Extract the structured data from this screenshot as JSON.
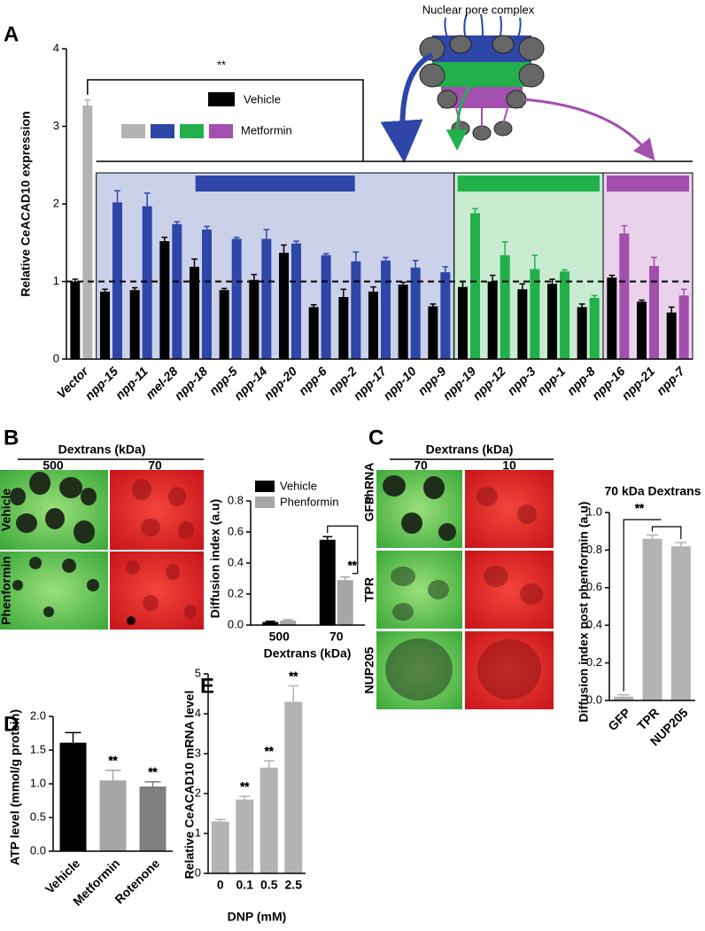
{
  "chart_data": [
    {
      "type": "bar",
      "panel_label": "A",
      "ylabel": "Relative CeACAD10 expression",
      "inset_label": "Nuclear pore complex",
      "categories": [
        "Vector",
        "npp-15",
        "npp-11",
        "mel-28",
        "npp-18",
        "npp-5",
        "npp-14",
        "npp-20",
        "npp-6",
        "npp-2",
        "npp-17",
        "npp-10",
        "npp-9",
        "npp-19",
        "npp-12",
        "npp-3",
        "npp-1",
        "npp-8",
        "npp-16",
        "npp-21",
        "npp-7"
      ],
      "series": [
        {
          "name": "Vehicle",
          "color": "#000000",
          "values": [
            1.0,
            0.87,
            0.89,
            1.52,
            1.19,
            0.89,
            1.02,
            1.37,
            0.67,
            0.8,
            0.87,
            0.96,
            0.68,
            0.93,
            1.0,
            0.9,
            0.97,
            0.67,
            1.05,
            0.74,
            0.6
          ],
          "errors": [
            0.03,
            0.03,
            0.03,
            0.05,
            0.1,
            0.02,
            0.07,
            0.1,
            0.03,
            0.1,
            0.06,
            0.03,
            0.03,
            0.07,
            0.08,
            0.07,
            0.06,
            0.04,
            0.03,
            0.02,
            0.07
          ]
        },
        {
          "name": "Metformin",
          "colors": [
            "#b3b3b3",
            "#2e46a8",
            "#2e46a8",
            "#2e46a8",
            "#2e46a8",
            "#2e46a8",
            "#2e46a8",
            "#2e46a8",
            "#2e46a8",
            "#2e46a8",
            "#2e46a8",
            "#2e46a8",
            "#2e46a8",
            "#22b04b",
            "#22b04b",
            "#22b04b",
            "#22b04b",
            "#22b04b",
            "#a24fae",
            "#a24fae",
            "#a24fae"
          ],
          "values": [
            3.27,
            2.02,
            1.97,
            1.74,
            1.67,
            1.55,
            1.55,
            1.49,
            1.34,
            1.26,
            1.27,
            1.18,
            1.12,
            1.88,
            1.34,
            1.16,
            1.13,
            0.79,
            1.62,
            1.2,
            0.82
          ],
          "errors": [
            0.07,
            0.15,
            0.17,
            0.03,
            0.04,
            0.02,
            0.12,
            0.03,
            0.02,
            0.12,
            0.04,
            0.09,
            0.07,
            0.06,
            0.17,
            0.18,
            0.02,
            0.03,
            0.1,
            0.11,
            0.08
          ]
        }
      ],
      "ylim": [
        0,
        4
      ],
      "yticks": [
        0,
        1,
        2,
        3,
        4
      ],
      "hline": 1,
      "annotations": [
        "**"
      ]
    },
    {
      "type": "bar",
      "panel_label": "B",
      "ylabel": "Diffusion index (a.u)",
      "xlabel": "Dextrans (kDa)",
      "categories": [
        "500",
        "70"
      ],
      "series": [
        {
          "name": "Vehicle",
          "color": "#000000",
          "values": [
            0.02,
            0.55
          ],
          "errors": [
            0.005,
            0.02
          ]
        },
        {
          "name": "Phenformin",
          "color": "#a6a6a6",
          "values": [
            0.03,
            0.29
          ],
          "errors": [
            0.005,
            0.02
          ]
        }
      ],
      "ylim": [
        0,
        0.8
      ],
      "yticks": [
        {
          "value": 0,
          "label": "0.0"
        },
        0.2,
        0.4,
        0.6,
        0.8
      ],
      "annotations": [
        "**"
      ]
    },
    {
      "type": "bar",
      "panel_label": "C",
      "title": "70 kDa Dextrans",
      "ylabel": "Diffusion index post phenformin (a.u)",
      "categories": [
        "GFP",
        "TPR",
        "NUP205"
      ],
      "values": [
        0.02,
        0.86,
        0.82
      ],
      "errors": [
        0.01,
        0.02,
        0.02
      ],
      "colors": [
        "#b3b3b3",
        "#b3b3b3",
        "#b3b3b3"
      ],
      "ylim": [
        0,
        1
      ],
      "yticks": [
        {
          "value": 0,
          "label": "0.0"
        },
        0.2,
        0.4,
        0.6,
        0.8,
        {
          "value": 1,
          "label": "1.0"
        }
      ],
      "annotations": [
        "**"
      ]
    },
    {
      "type": "bar",
      "panel_label": "D",
      "ylabel": "ATP level (mmol/g protein)",
      "categories": [
        "Vehicle",
        "Metformin",
        "Rotenone"
      ],
      "values": [
        1.61,
        1.05,
        0.96
      ],
      "errors": [
        0.15,
        0.15,
        0.07
      ],
      "colors": [
        "#000000",
        "#a6a6a6",
        "#7f7f7f"
      ],
      "ylim": [
        0,
        2
      ],
      "yticks": [
        {
          "value": 0,
          "label": "0.0"
        },
        0.5,
        {
          "value": 1,
          "label": "1.0"
        },
        1.5,
        {
          "value": 2,
          "label": "2.0"
        }
      ],
      "annotations": [
        "**",
        "**"
      ]
    },
    {
      "type": "bar",
      "panel_label": "E",
      "ylabel": "Relative CeACAD10 mRNA level",
      "xlabel": "DNP (mM)",
      "categories": [
        "0",
        "0.1",
        "0.5",
        "2.5"
      ],
      "values": [
        1.3,
        1.85,
        2.65,
        4.3
      ],
      "errors": [
        0.05,
        0.08,
        0.17,
        0.4
      ],
      "colors": [
        "#b3b3b3",
        "#b3b3b3",
        "#b3b3b3",
        "#b3b3b3"
      ],
      "ylim": [
        0,
        5
      ],
      "yticks": [
        0,
        1,
        2,
        3,
        4,
        5
      ],
      "annotations": [
        "**",
        "**",
        "**"
      ]
    }
  ],
  "images": {
    "B": {
      "header": "Dextrans (kDa)",
      "columns": [
        "500",
        "70"
      ],
      "rows": [
        "Vehicle",
        "Phenformin"
      ]
    },
    "C": {
      "header": "Dextrans (kDa)",
      "corner": "shRNA",
      "columns": [
        "70",
        "10"
      ],
      "rows": [
        "GFP",
        "TPR",
        "NUP205"
      ]
    }
  }
}
